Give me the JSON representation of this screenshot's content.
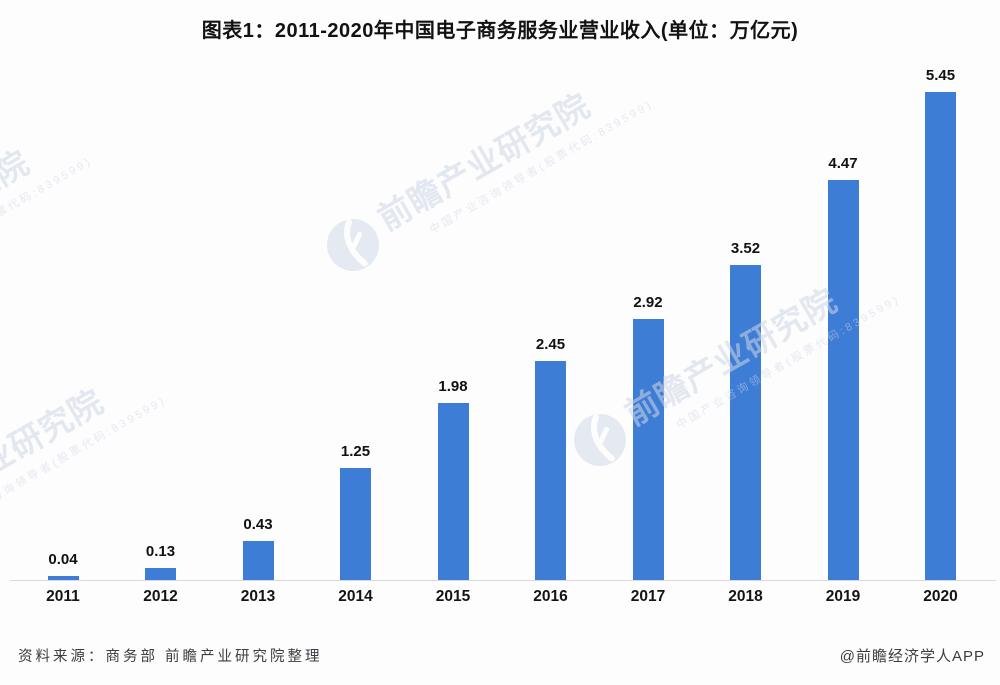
{
  "title": "图表1：2011-2020年中国电子商务服务业营业收入(单位：万亿元)",
  "chart_data": {
    "type": "bar",
    "title": "图表1：2011-2020年中国电子商务服务业营业收入",
    "unit": "万亿元",
    "categories": [
      "2011",
      "2012",
      "2013",
      "2014",
      "2015",
      "2016",
      "2017",
      "2018",
      "2019",
      "2020"
    ],
    "values": [
      0.04,
      0.13,
      0.43,
      1.25,
      1.98,
      2.45,
      2.92,
      3.52,
      4.47,
      5.45
    ],
    "xlabel": "",
    "ylabel": "",
    "ylim": [
      0,
      5.6
    ],
    "y_axis_shown": false,
    "grid": false,
    "legend": false,
    "value_labels_shown": true,
    "bar_color": "#3E7DD5"
  },
  "footer": {
    "source": "资料来源：商务部 前瞻产业研究院整理",
    "credit": "@前瞻经济学人APP"
  },
  "watermark": {
    "logo_icon": "qianzhan-eye-logo",
    "text": "前瞻产业研究院",
    "subtext": "中国产业咨询领导者(股票代码:839599)"
  },
  "colors": {
    "bar": "#3E7DD5",
    "axis_line": "#d8dade",
    "text": "#141414",
    "footer_text": "#3c3c42",
    "watermark": "#cdd5e3"
  }
}
